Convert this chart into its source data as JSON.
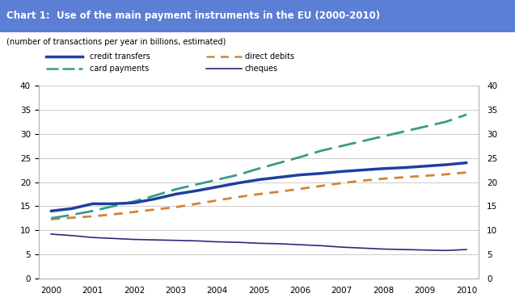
{
  "title": "Chart 1:  Use of the main payment instruments in the EU (2000-2010)",
  "title_bg": "#5B7FD4",
  "subtitle": "(number of transactions per year in billions, estimated)",
  "years": [
    2000,
    2000.5,
    2001,
    2001.5,
    2002,
    2002.5,
    2003,
    2003.5,
    2004,
    2004.5,
    2005,
    2005.5,
    2006,
    2006.5,
    2007,
    2007.5,
    2008,
    2008.5,
    2009,
    2009.5,
    2010
  ],
  "credit_transfers": [
    14.0,
    14.5,
    15.5,
    15.5,
    15.7,
    16.5,
    17.5,
    18.2,
    19.0,
    19.8,
    20.5,
    21.0,
    21.5,
    21.8,
    22.2,
    22.5,
    22.8,
    23.0,
    23.3,
    23.6,
    24.0
  ],
  "direct_debits": [
    12.3,
    12.6,
    12.9,
    13.3,
    13.8,
    14.3,
    14.8,
    15.5,
    16.2,
    16.9,
    17.5,
    18.0,
    18.6,
    19.2,
    19.8,
    20.3,
    20.7,
    21.0,
    21.3,
    21.6,
    22.0
  ],
  "card_payments": [
    12.5,
    13.2,
    14.0,
    15.0,
    16.0,
    17.2,
    18.5,
    19.5,
    20.5,
    21.5,
    22.8,
    24.0,
    25.2,
    26.5,
    27.5,
    28.5,
    29.5,
    30.5,
    31.5,
    32.5,
    34.0
  ],
  "cheques": [
    9.2,
    8.9,
    8.5,
    8.3,
    8.1,
    8.0,
    7.9,
    7.8,
    7.6,
    7.5,
    7.3,
    7.2,
    7.0,
    6.8,
    6.5,
    6.3,
    6.1,
    6.0,
    5.9,
    5.8,
    6.0
  ],
  "credit_color": "#1F3F9F",
  "direct_color": "#D2843A",
  "card_color": "#3A9A8A",
  "cheque_color": "#2A2A7A",
  "ylim": [
    0,
    40
  ],
  "yticks": [
    0,
    5,
    10,
    15,
    20,
    25,
    30,
    35,
    40
  ],
  "xlim": [
    1999.7,
    2010.3
  ],
  "bg_color": "#FFFFFF",
  "plot_bg": "#FFFFFF",
  "grid_color": "#CCCCCC"
}
